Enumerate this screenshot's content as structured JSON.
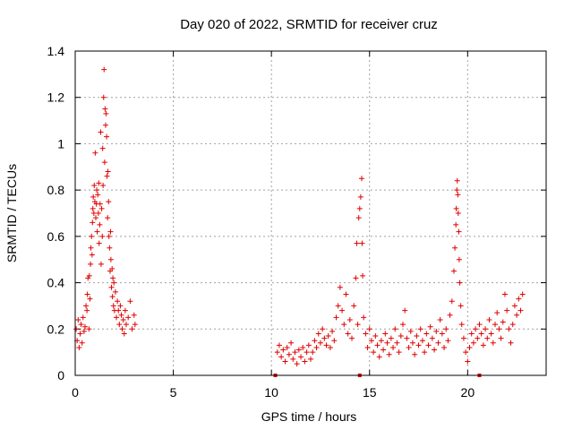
{
  "chart_data": {
    "type": "scatter",
    "title": "Day 020 of 2022, SRMTID for receiver cruz",
    "xlabel": "GPS time / hours",
    "ylabel": "SRMTID / TECUs",
    "xlim": [
      0,
      24
    ],
    "ylim": [
      0,
      1.4
    ],
    "x_ticks": [
      0,
      5,
      10,
      15,
      20
    ],
    "x_tick_labels": [
      "0",
      "5",
      "10",
      "15",
      "20"
    ],
    "y_ticks": [
      0,
      0.2,
      0.4,
      0.6,
      0.8,
      1.0,
      1.2,
      1.4
    ],
    "y_tick_labels": [
      "0",
      "0.2",
      "0.4",
      "0.6",
      "0.8",
      "1",
      "1.2",
      "1.4"
    ],
    "grid": true,
    "marker": "plus",
    "series_color": "#e00000",
    "axis_markers_x": [
      10.2,
      14.5,
      20.6
    ],
    "series": [
      {
        "name": "SRMTID",
        "points": [
          [
            0.05,
            0.2
          ],
          [
            0.1,
            0.15
          ],
          [
            0.15,
            0.24
          ],
          [
            0.2,
            0.12
          ],
          [
            0.25,
            0.18
          ],
          [
            0.3,
            0.22
          ],
          [
            0.35,
            0.14
          ],
          [
            0.4,
            0.25
          ],
          [
            0.45,
            0.19
          ],
          [
            0.5,
            0.21
          ],
          [
            0.55,
            0.3
          ],
          [
            0.6,
            0.28
          ],
          [
            0.62,
            0.35
          ],
          [
            0.65,
            0.42
          ],
          [
            0.7,
            0.2
          ],
          [
            0.72,
            0.43
          ],
          [
            0.75,
            0.33
          ],
          [
            0.78,
            0.48
          ],
          [
            0.8,
            0.55
          ],
          [
            0.83,
            0.6
          ],
          [
            0.86,
            0.52
          ],
          [
            0.88,
            0.66
          ],
          [
            0.9,
            0.72
          ],
          [
            0.92,
            0.77
          ],
          [
            0.95,
            0.7
          ],
          [
            0.97,
            0.82
          ],
          [
            1.0,
            0.75
          ],
          [
            1.02,
            0.96
          ],
          [
            1.05,
            0.68
          ],
          [
            1.08,
            0.74
          ],
          [
            1.1,
            0.8
          ],
          [
            1.12,
            0.62
          ],
          [
            1.15,
            0.78
          ],
          [
            1.18,
            0.7
          ],
          [
            1.2,
            0.83
          ],
          [
            1.22,
            0.57
          ],
          [
            1.25,
            0.65
          ],
          [
            1.27,
            0.74
          ],
          [
            1.3,
            1.05
          ],
          [
            1.32,
            0.48
          ],
          [
            1.35,
            0.72
          ],
          [
            1.38,
            0.6
          ],
          [
            1.4,
            0.98
          ],
          [
            1.42,
            0.82
          ],
          [
            1.45,
            1.2
          ],
          [
            1.47,
            1.32
          ],
          [
            1.5,
            0.92
          ],
          [
            1.52,
            1.15
          ],
          [
            1.55,
            1.08
          ],
          [
            1.57,
            1.13
          ],
          [
            1.6,
            1.03
          ],
          [
            1.62,
            0.86
          ],
          [
            1.65,
            0.68
          ],
          [
            1.67,
            0.88
          ],
          [
            1.7,
            0.75
          ],
          [
            1.72,
            0.6
          ],
          [
            1.75,
            0.55
          ],
          [
            1.78,
            0.45
          ],
          [
            1.8,
            0.62
          ],
          [
            1.82,
            0.5
          ],
          [
            1.85,
            0.38
          ],
          [
            1.88,
            0.46
          ],
          [
            1.9,
            0.34
          ],
          [
            1.92,
            0.42
          ],
          [
            1.95,
            0.3
          ],
          [
            1.97,
            0.4
          ],
          [
            2.0,
            0.28
          ],
          [
            2.05,
            0.36
          ],
          [
            2.1,
            0.25
          ],
          [
            2.15,
            0.32
          ],
          [
            2.2,
            0.28
          ],
          [
            2.25,
            0.22
          ],
          [
            2.3,
            0.3
          ],
          [
            2.35,
            0.26
          ],
          [
            2.4,
            0.2
          ],
          [
            2.45,
            0.24
          ],
          [
            2.5,
            0.18
          ],
          [
            2.55,
            0.28
          ],
          [
            2.6,
            0.22
          ],
          [
            2.7,
            0.25
          ],
          [
            2.8,
            0.32
          ],
          [
            2.9,
            0.2
          ],
          [
            3.0,
            0.26
          ],
          [
            3.05,
            0.22
          ],
          [
            10.3,
            0.1
          ],
          [
            10.4,
            0.13
          ],
          [
            10.5,
            0.08
          ],
          [
            10.6,
            0.11
          ],
          [
            10.7,
            0.06
          ],
          [
            10.8,
            0.12
          ],
          [
            10.9,
            0.09
          ],
          [
            11.0,
            0.14
          ],
          [
            11.1,
            0.07
          ],
          [
            11.2,
            0.1
          ],
          [
            11.3,
            0.05
          ],
          [
            11.4,
            0.11
          ],
          [
            11.5,
            0.08
          ],
          [
            11.6,
            0.12
          ],
          [
            11.7,
            0.06
          ],
          [
            11.8,
            0.1
          ],
          [
            11.9,
            0.13
          ],
          [
            12.0,
            0.07
          ],
          [
            12.1,
            0.1
          ],
          [
            12.2,
            0.15
          ],
          [
            12.3,
            0.12
          ],
          [
            12.4,
            0.18
          ],
          [
            12.5,
            0.14
          ],
          [
            12.6,
            0.2
          ],
          [
            12.7,
            0.16
          ],
          [
            12.8,
            0.13
          ],
          [
            12.9,
            0.17
          ],
          [
            13.0,
            0.12
          ],
          [
            13.1,
            0.19
          ],
          [
            13.2,
            0.15
          ],
          [
            13.3,
            0.25
          ],
          [
            13.4,
            0.3
          ],
          [
            13.5,
            0.38
          ],
          [
            13.6,
            0.28
          ],
          [
            13.7,
            0.22
          ],
          [
            13.8,
            0.35
          ],
          [
            13.9,
            0.18
          ],
          [
            14.0,
            0.24
          ],
          [
            14.1,
            0.16
          ],
          [
            14.2,
            0.3
          ],
          [
            14.3,
            0.42
          ],
          [
            14.35,
            0.57
          ],
          [
            14.4,
            0.22
          ],
          [
            14.45,
            0.68
          ],
          [
            14.5,
            0.72
          ],
          [
            14.55,
            0.77
          ],
          [
            14.6,
            0.85
          ],
          [
            14.62,
            0.57
          ],
          [
            14.65,
            0.43
          ],
          [
            14.7,
            0.25
          ],
          [
            14.8,
            0.18
          ],
          [
            14.9,
            0.12
          ],
          [
            15.0,
            0.2
          ],
          [
            15.1,
            0.15
          ],
          [
            15.2,
            0.1
          ],
          [
            15.3,
            0.17
          ],
          [
            15.4,
            0.13
          ],
          [
            15.5,
            0.08
          ],
          [
            15.6,
            0.15
          ],
          [
            15.7,
            0.11
          ],
          [
            15.8,
            0.18
          ],
          [
            15.9,
            0.14
          ],
          [
            16.0,
            0.09
          ],
          [
            16.1,
            0.16
          ],
          [
            16.2,
            0.12
          ],
          [
            16.3,
            0.2
          ],
          [
            16.4,
            0.14
          ],
          [
            16.5,
            0.1
          ],
          [
            16.6,
            0.17
          ],
          [
            16.7,
            0.22
          ],
          [
            16.8,
            0.28
          ],
          [
            16.9,
            0.16
          ],
          [
            17.0,
            0.12
          ],
          [
            17.1,
            0.19
          ],
          [
            17.2,
            0.14
          ],
          [
            17.3,
            0.09
          ],
          [
            17.4,
            0.17
          ],
          [
            17.5,
            0.13
          ],
          [
            17.6,
            0.2
          ],
          [
            17.7,
            0.15
          ],
          [
            17.8,
            0.1
          ],
          [
            17.9,
            0.18
          ],
          [
            18.0,
            0.13
          ],
          [
            18.1,
            0.21
          ],
          [
            18.2,
            0.16
          ],
          [
            18.3,
            0.11
          ],
          [
            18.4,
            0.19
          ],
          [
            18.5,
            0.14
          ],
          [
            18.6,
            0.24
          ],
          [
            18.7,
            0.18
          ],
          [
            18.8,
            0.12
          ],
          [
            18.9,
            0.2
          ],
          [
            19.0,
            0.15
          ],
          [
            19.1,
            0.26
          ],
          [
            19.2,
            0.32
          ],
          [
            19.3,
            0.45
          ],
          [
            19.35,
            0.55
          ],
          [
            19.4,
            0.65
          ],
          [
            19.42,
            0.72
          ],
          [
            19.45,
            0.8
          ],
          [
            19.47,
            0.84
          ],
          [
            19.5,
            0.78
          ],
          [
            19.52,
            0.7
          ],
          [
            19.55,
            0.62
          ],
          [
            19.57,
            0.5
          ],
          [
            19.6,
            0.4
          ],
          [
            19.65,
            0.3
          ],
          [
            19.7,
            0.22
          ],
          [
            19.8,
            0.16
          ],
          [
            19.9,
            0.1
          ],
          [
            20.0,
            0.06
          ],
          [
            20.1,
            0.12
          ],
          [
            20.2,
            0.18
          ],
          [
            20.3,
            0.14
          ],
          [
            20.4,
            0.2
          ],
          [
            20.5,
            0.16
          ],
          [
            20.6,
            0.22
          ],
          [
            20.7,
            0.18
          ],
          [
            20.8,
            0.13
          ],
          [
            20.9,
            0.2
          ],
          [
            21.0,
            0.16
          ],
          [
            21.1,
            0.24
          ],
          [
            21.2,
            0.18
          ],
          [
            21.3,
            0.14
          ],
          [
            21.4,
            0.22
          ],
          [
            21.5,
            0.27
          ],
          [
            21.6,
            0.2
          ],
          [
            21.7,
            0.16
          ],
          [
            21.8,
            0.23
          ],
          [
            21.9,
            0.35
          ],
          [
            22.0,
            0.28
          ],
          [
            22.1,
            0.2
          ],
          [
            22.2,
            0.14
          ],
          [
            22.3,
            0.22
          ],
          [
            22.4,
            0.3
          ],
          [
            22.5,
            0.26
          ],
          [
            22.6,
            0.33
          ],
          [
            22.7,
            0.28
          ],
          [
            22.8,
            0.35
          ]
        ]
      }
    ]
  }
}
